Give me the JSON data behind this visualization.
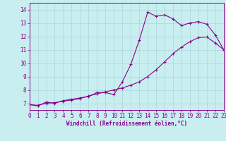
{
  "xlabel": "Windchill (Refroidissement éolien,°C)",
  "background_color": "#c8eef0",
  "line_color": "#8b008b",
  "grid_color": "#a8d8dc",
  "x_min": 0,
  "x_max": 23,
  "y_min": 6.5,
  "y_max": 14.5,
  "yticks": [
    7,
    8,
    9,
    10,
    11,
    12,
    13,
    14
  ],
  "xticks": [
    0,
    1,
    2,
    3,
    4,
    5,
    6,
    7,
    8,
    9,
    10,
    11,
    12,
    13,
    14,
    15,
    16,
    17,
    18,
    19,
    20,
    21,
    22,
    23
  ],
  "line1_x": [
    0,
    1,
    2,
    3,
    4,
    5,
    6,
    7,
    8,
    9,
    10,
    11,
    12,
    13,
    14,
    15,
    16,
    17,
    18,
    19,
    20,
    21,
    22,
    23
  ],
  "line1_y": [
    6.9,
    6.8,
    7.1,
    7.0,
    7.2,
    7.3,
    7.4,
    7.5,
    7.8,
    7.8,
    7.65,
    8.6,
    9.9,
    11.7,
    13.8,
    13.5,
    13.6,
    13.3,
    12.8,
    13.0,
    13.1,
    12.9,
    12.1,
    11.0
  ],
  "line2_x": [
    0,
    1,
    2,
    3,
    4,
    5,
    6,
    7,
    8,
    9,
    10,
    11,
    12,
    13,
    14,
    15,
    16,
    17,
    18,
    19,
    20,
    21,
    22,
    23
  ],
  "line2_y": [
    6.9,
    6.85,
    7.0,
    7.05,
    7.15,
    7.25,
    7.35,
    7.55,
    7.7,
    7.85,
    8.0,
    8.15,
    8.35,
    8.6,
    9.0,
    9.5,
    10.1,
    10.7,
    11.2,
    11.6,
    11.9,
    11.95,
    11.5,
    11.0
  ],
  "tick_fontsize": 5.5,
  "xlabel_fontsize": 5.5
}
